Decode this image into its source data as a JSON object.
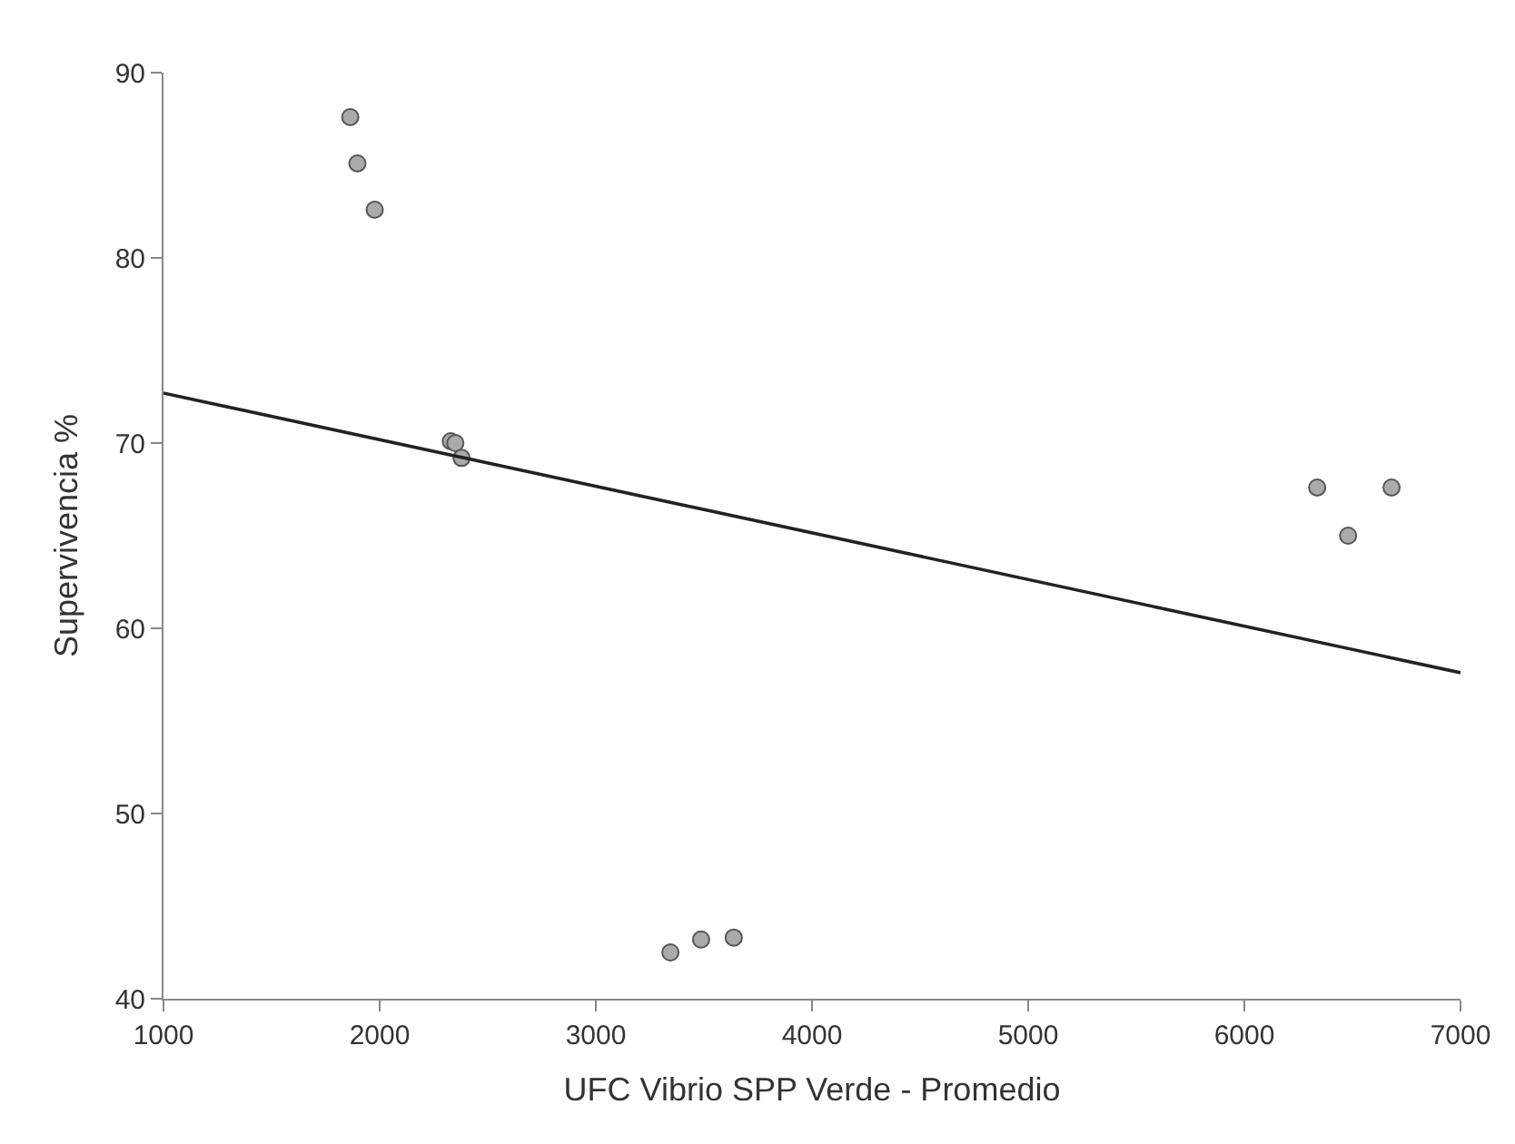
{
  "chart_data": {
    "type": "scatter",
    "xlabel": "UFC Vibrio SPP Verde - Promedio",
    "ylabel": "Supervivencia %",
    "xlim": [
      1000,
      7000
    ],
    "xticks": [
      1000,
      2000,
      3000,
      4000,
      5000,
      6000,
      7000
    ],
    "ylim": [
      40,
      90
    ],
    "yticks": [
      40,
      50,
      60,
      70,
      80,
      90
    ],
    "series": [
      {
        "marker": "circle",
        "color": "#aaaaaa",
        "x": [
          1864,
          1897,
          1977,
          2329,
          2350,
          2379,
          3345,
          3487,
          3638,
          6337,
          6480,
          6681
        ],
        "values": [
          87.6,
          85.1,
          82.6,
          70.1,
          70.0,
          69.2,
          42.5,
          43.2,
          43.3,
          67.6,
          65.0,
          67.6
        ]
      },
      {
        "type": "line",
        "marker": "none",
        "color": "#222222",
        "x": [
          1000,
          7000
        ],
        "values": [
          72.7,
          57.6
        ]
      }
    ]
  }
}
